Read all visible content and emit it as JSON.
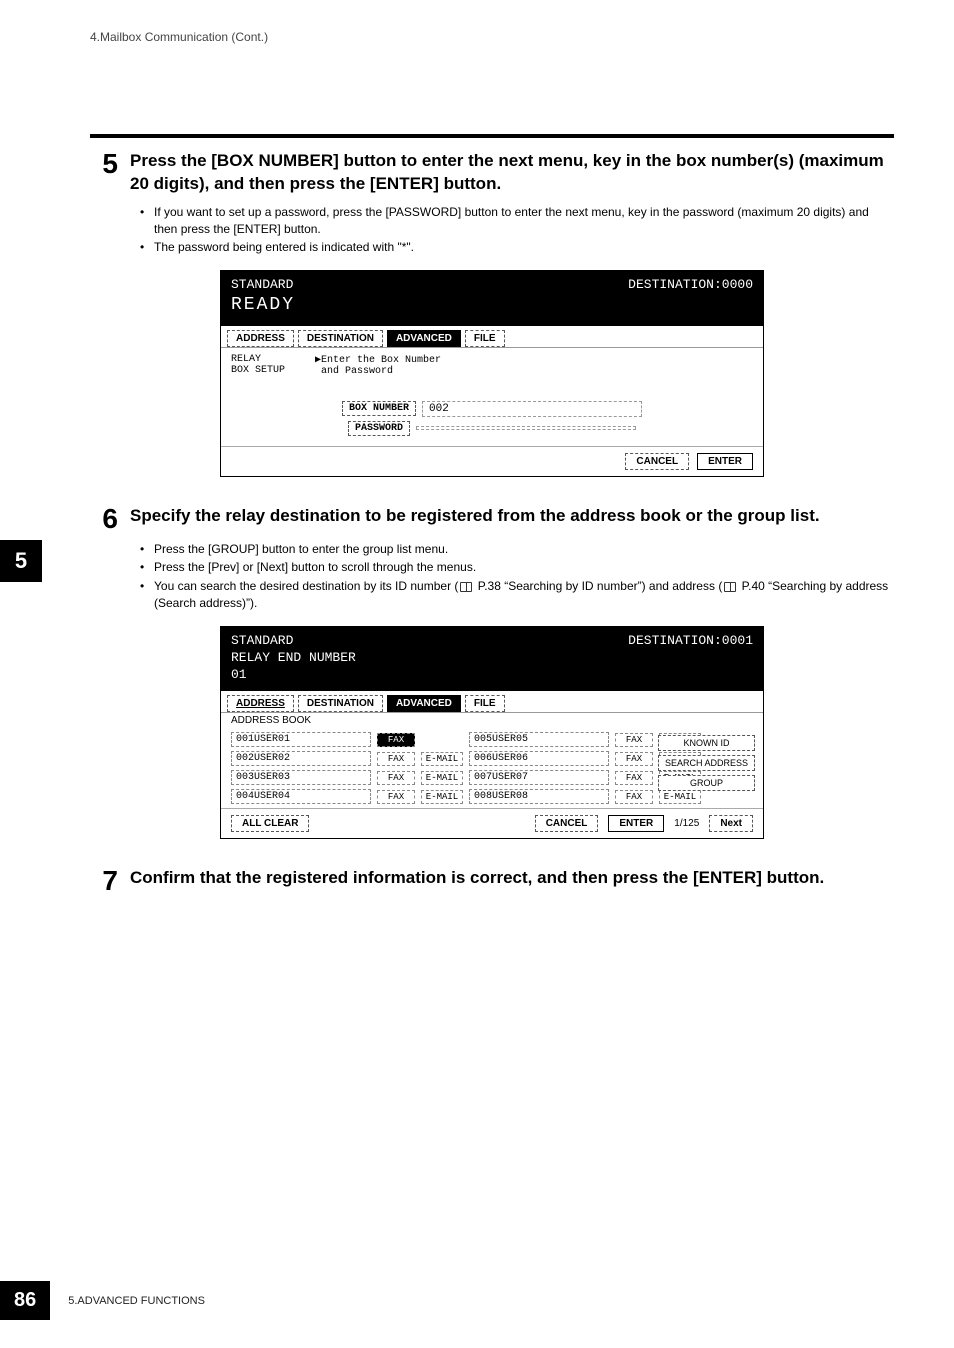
{
  "running_header": "4.Mailbox Communication (Cont.)",
  "side_tab": "5",
  "step5": {
    "num": "5",
    "text": "Press the [BOX NUMBER] button to enter the next menu, key in the box number(s) (maximum 20 digits), and then press the [ENTER] button.",
    "bullets": [
      "If you want to set up a password, press the [PASSWORD] button to enter the next menu, key in the password (maximum 20 digits) and then press the [ENTER] button.",
      "The password being entered is indicated with \"*\"."
    ]
  },
  "screen1": {
    "mode": "STANDARD",
    "destination_lbl": "DESTINATION:0000",
    "ready": "READY",
    "tabs": [
      "ADDRESS",
      "DESTINATION",
      "ADVANCED",
      "FILE"
    ],
    "active_tab": 2,
    "left_info": "RELAY\nBOX SETUP",
    "hint": "▶Enter the Box Number\n and Password",
    "box_number_btn": "BOX NUMBER",
    "box_number_val": "002",
    "password_btn": "PASSWORD",
    "cancel": "CANCEL",
    "enter": "ENTER"
  },
  "step6": {
    "num": "6",
    "text": "Specify the relay destination to be registered from the address book or the group list.",
    "bullets": [
      "Press the [GROUP] button to enter the group list menu.",
      "Press the [Prev] or [Next] button to scroll through the menus.",
      "You can search the desired destination by its ID number (   P.38 “Searching by ID number”) and address (   P.40 “Searching by address (Search address)”)."
    ]
  },
  "screen2": {
    "mode": "STANDARD",
    "destination_lbl": "DESTINATION:0001",
    "relay": "RELAY END NUMBER",
    "relay_num": "01",
    "tabs": [
      "ADDRESS",
      "DESTINATION",
      "ADVANCED",
      "FILE"
    ],
    "active_tab": 0,
    "section": "ADDRESS BOOK",
    "rows": [
      {
        "l": "001USER01",
        "lf": "FAX",
        "le": "",
        "r": "005USER05",
        "rf": "FAX",
        "re": "E-MAIL",
        "sel": true
      },
      {
        "l": "002USER02",
        "lf": "FAX",
        "le": "E-MAIL",
        "r": "006USER06",
        "rf": "FAX",
        "re": "E-MAIL"
      },
      {
        "l": "003USER03",
        "lf": "FAX",
        "le": "E-MAIL",
        "r": "007USER07",
        "rf": "FAX",
        "re": "E-MAIL"
      },
      {
        "l": "004USER04",
        "lf": "FAX",
        "le": "E-MAIL",
        "r": "008USER08",
        "rf": "FAX",
        "re": "E-MAIL"
      }
    ],
    "side_buttons": [
      "KNOWN ID",
      "SEARCH ADDRESS",
      "GROUP"
    ],
    "all_clear": "ALL CLEAR",
    "cancel": "CANCEL",
    "enter": "ENTER",
    "page_ind": "1/125",
    "next": "Next"
  },
  "step7": {
    "num": "7",
    "text": "Confirm that the registered information is correct, and then press the [ENTER] button."
  },
  "footer": {
    "pagenum": "86",
    "text": "5.ADVANCED FUNCTIONS"
  }
}
